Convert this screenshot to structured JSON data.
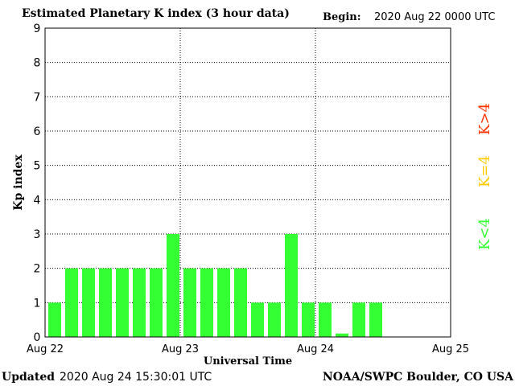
{
  "header": {
    "title": "Estimated Planetary K index (3 hour data)",
    "begin_label": "Begin:",
    "begin_value": "2020 Aug 22 0000 UTC"
  },
  "footer": {
    "updated_label": "Updated",
    "updated_value": "2020 Aug 24 15:30:01 UTC",
    "source": "NOAA/SWPC Boulder, CO USA"
  },
  "colors": {
    "low": "#33ff33",
    "moderate": "#ffcc00",
    "high": "#ff3300",
    "grid": "#000000"
  },
  "chart_data": {
    "type": "bar",
    "title": "Estimated Planetary K index (3 hour data)",
    "xlabel": "Universal Time",
    "ylabel": "Kp index",
    "ylim": [
      0,
      9
    ],
    "yticks": [
      "0",
      "1",
      "2",
      "3",
      "4",
      "5",
      "6",
      "7",
      "8",
      "9"
    ],
    "x_tick_labels": [
      "Aug 22",
      "Aug 23",
      "Aug 24",
      "Aug 25"
    ],
    "interval_hours": 3,
    "grid": true,
    "values": [
      1,
      2,
      2,
      2,
      2,
      2,
      2,
      3,
      2,
      2,
      2,
      2,
      1,
      1,
      3,
      1,
      1,
      0.1,
      1,
      1
    ],
    "legend": [
      {
        "label": "K<4",
        "color": "#33ff33"
      },
      {
        "label": "K=4",
        "color": "#ffcc00"
      },
      {
        "label": "K>4",
        "color": "#ff3300"
      }
    ]
  }
}
